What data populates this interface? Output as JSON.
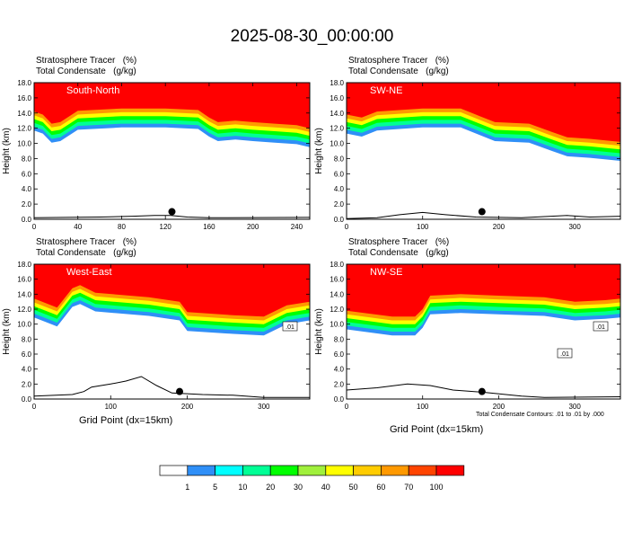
{
  "title": "2025-08-30_00:00:00",
  "panel_titles": {
    "line1": "Stratosphere Tracer   (%)",
    "line2": "Total Condensate   (g/kg)"
  },
  "xlabel": "Grid Point (dx=15km)",
  "footnote": "Total Condensate Contours: .01 to .01 by .000",
  "colorbar": {
    "labels": [
      "1",
      "5",
      "10",
      "20",
      "30",
      "40",
      "50",
      "60",
      "70",
      "100"
    ],
    "colors": [
      "#ffffff",
      "#2f8ff7",
      "#00ffff",
      "#00ff96",
      "#00ff00",
      "#a0f03c",
      "#ffff00",
      "#ffcc00",
      "#ff9900",
      "#ff4400",
      "#ff0000"
    ]
  },
  "chart_data": [
    {
      "type": "heatmap",
      "panel": "South-North",
      "ylabel": "Height (km)",
      "yticks": [
        "0.0",
        "2.0",
        "4.0",
        "6.0",
        "8.0",
        "10.0",
        "12.0",
        "14.0",
        "16.0",
        "18.0"
      ],
      "ylim": [
        0,
        18
      ],
      "xticks": [
        "0",
        "40",
        "80",
        "120",
        "160",
        "200",
        "240"
      ],
      "xtick_values": [
        0,
        40,
        80,
        120,
        160,
        200,
        240
      ],
      "xlim": [
        0,
        252
      ],
      "tropopause": [
        [
          0,
          14.2
        ],
        [
          8,
          13.8
        ],
        [
          16,
          12.6
        ],
        [
          24,
          12.8
        ],
        [
          40,
          14.3
        ],
        [
          80,
          14.6
        ],
        [
          120,
          14.6
        ],
        [
          150,
          14.4
        ],
        [
          160,
          13.4
        ],
        [
          168,
          12.8
        ],
        [
          184,
          13.0
        ],
        [
          200,
          12.8
        ],
        [
          220,
          12.6
        ],
        [
          240,
          12.4
        ],
        [
          252,
          12.0
        ]
      ],
      "terrain": [
        [
          0,
          0.2
        ],
        [
          60,
          0.3
        ],
        [
          90,
          0.4
        ],
        [
          110,
          0.5
        ],
        [
          125,
          0.5
        ],
        [
          140,
          0.3
        ],
        [
          160,
          0.2
        ],
        [
          252,
          0.25
        ]
      ],
      "marker_x": 126,
      "contour_labels": []
    },
    {
      "type": "heatmap",
      "panel": "SW-NE",
      "ylabel": "Height (km)",
      "yticks": [
        "0.0",
        "2.0",
        "4.0",
        "6.0",
        "8.0",
        "10.0",
        "12.0",
        "14.0",
        "16.0",
        "18.0"
      ],
      "ylim": [
        0,
        18
      ],
      "xticks": [
        "0",
        "100",
        "200",
        "300"
      ],
      "xtick_values": [
        0,
        100,
        200,
        300
      ],
      "xlim": [
        0,
        360
      ],
      "tropopause": [
        [
          0,
          13.8
        ],
        [
          20,
          13.4
        ],
        [
          40,
          14.2
        ],
        [
          100,
          14.6
        ],
        [
          150,
          14.6
        ],
        [
          175,
          13.6
        ],
        [
          195,
          12.8
        ],
        [
          240,
          12.6
        ],
        [
          270,
          11.5
        ],
        [
          290,
          10.8
        ],
        [
          320,
          10.6
        ],
        [
          360,
          10.2
        ]
      ],
      "terrain": [
        [
          0,
          0.1
        ],
        [
          40,
          0.2
        ],
        [
          70,
          0.6
        ],
        [
          100,
          0.9
        ],
        [
          130,
          0.6
        ],
        [
          170,
          0.3
        ],
        [
          230,
          0.2
        ],
        [
          290,
          0.5
        ],
        [
          320,
          0.3
        ],
        [
          360,
          0.4
        ]
      ],
      "marker_x": 178,
      "contour_labels": []
    },
    {
      "type": "heatmap",
      "panel": "West-East",
      "ylabel": "Height (km)",
      "yticks": [
        "0.0",
        "2.0",
        "4.0",
        "6.0",
        "8.0",
        "10.0",
        "12.0",
        "14.0",
        "16.0",
        "18.0"
      ],
      "ylim": [
        0,
        18
      ],
      "xticks": [
        "0",
        "100",
        "200",
        "300"
      ],
      "xtick_values": [
        0,
        100,
        200,
        300
      ],
      "xlim": [
        0,
        360
      ],
      "tropopause": [
        [
          0,
          13.4
        ],
        [
          30,
          12.2
        ],
        [
          50,
          14.8
        ],
        [
          60,
          15.2
        ],
        [
          80,
          14.2
        ],
        [
          150,
          13.6
        ],
        [
          190,
          13.0
        ],
        [
          200,
          11.6
        ],
        [
          260,
          11.2
        ],
        [
          300,
          11.0
        ],
        [
          330,
          12.5
        ],
        [
          360,
          13.0
        ]
      ],
      "terrain": [
        [
          0,
          0.4
        ],
        [
          50,
          0.6
        ],
        [
          65,
          1.0
        ],
        [
          75,
          1.6
        ],
        [
          100,
          2.0
        ],
        [
          120,
          2.4
        ],
        [
          140,
          3.0
        ],
        [
          160,
          1.8
        ],
        [
          180,
          0.8
        ],
        [
          220,
          0.6
        ],
        [
          260,
          0.5
        ],
        [
          300,
          0.2
        ],
        [
          360,
          0.2
        ]
      ],
      "marker_x": 190,
      "contour_labels": [
        ".01"
      ]
    },
    {
      "type": "heatmap",
      "panel": "NW-SE",
      "ylabel": "Height (km)",
      "yticks": [
        "0.0",
        "2.0",
        "4.0",
        "6.0",
        "8.0",
        "10.0",
        "12.0",
        "14.0",
        "16.0",
        "18.0"
      ],
      "ylim": [
        0,
        18
      ],
      "xticks": [
        "0",
        "100",
        "200",
        "300"
      ],
      "xtick_values": [
        0,
        100,
        200,
        300
      ],
      "xlim": [
        0,
        360
      ],
      "tropopause": [
        [
          0,
          11.8
        ],
        [
          60,
          11.0
        ],
        [
          90,
          11.0
        ],
        [
          100,
          12.0
        ],
        [
          110,
          13.8
        ],
        [
          150,
          14.0
        ],
        [
          200,
          13.8
        ],
        [
          260,
          13.6
        ],
        [
          300,
          13.0
        ],
        [
          340,
          13.2
        ],
        [
          360,
          13.4
        ]
      ],
      "terrain": [
        [
          0,
          1.2
        ],
        [
          40,
          1.5
        ],
        [
          80,
          2.0
        ],
        [
          110,
          1.8
        ],
        [
          140,
          1.2
        ],
        [
          180,
          0.9
        ],
        [
          230,
          0.4
        ],
        [
          260,
          0.2
        ],
        [
          360,
          0.3
        ]
      ],
      "marker_x": 178,
      "contour_labels": [
        ".01",
        ".01"
      ]
    }
  ]
}
